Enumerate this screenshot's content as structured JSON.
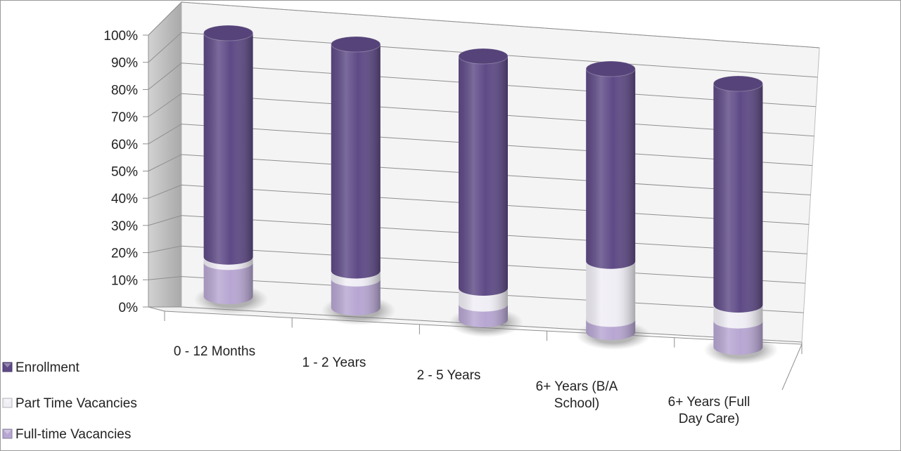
{
  "chart_data": {
    "type": "bar",
    "stacked": true,
    "style": "3d-cylinder",
    "title": "",
    "xlabel": "",
    "ylabel": "",
    "ylim": [
      0,
      100
    ],
    "y_ticks": [
      "0%",
      "10%",
      "20%",
      "30%",
      "40%",
      "50%",
      "60%",
      "70%",
      "80%",
      "90%",
      "100%"
    ],
    "categories": [
      [
        "0 - 12 Months"
      ],
      [
        "1 - 2 Years"
      ],
      [
        "2 - 5 Years"
      ],
      [
        "6+ Years (B/A",
        "School)"
      ],
      [
        "6+ Years (Full",
        "Day Care)"
      ]
    ],
    "series": [
      {
        "name": "Full-time Vacancies",
        "color": "#b7a6d2",
        "values": [
          13,
          11,
          6,
          5,
          10
        ]
      },
      {
        "name": "Part Time Vacancies",
        "color": "#f0eef5",
        "values": [
          2,
          3,
          6,
          22,
          6
        ]
      },
      {
        "name": "Enrollment",
        "color": "#5e4a86",
        "values": [
          85,
          86,
          88,
          73,
          84
        ]
      }
    ],
    "legend_order": [
      "Enrollment",
      "Part Time Vacancies",
      "Full-time Vacancies"
    ],
    "legend_position": "bottom-left",
    "grid": true
  }
}
